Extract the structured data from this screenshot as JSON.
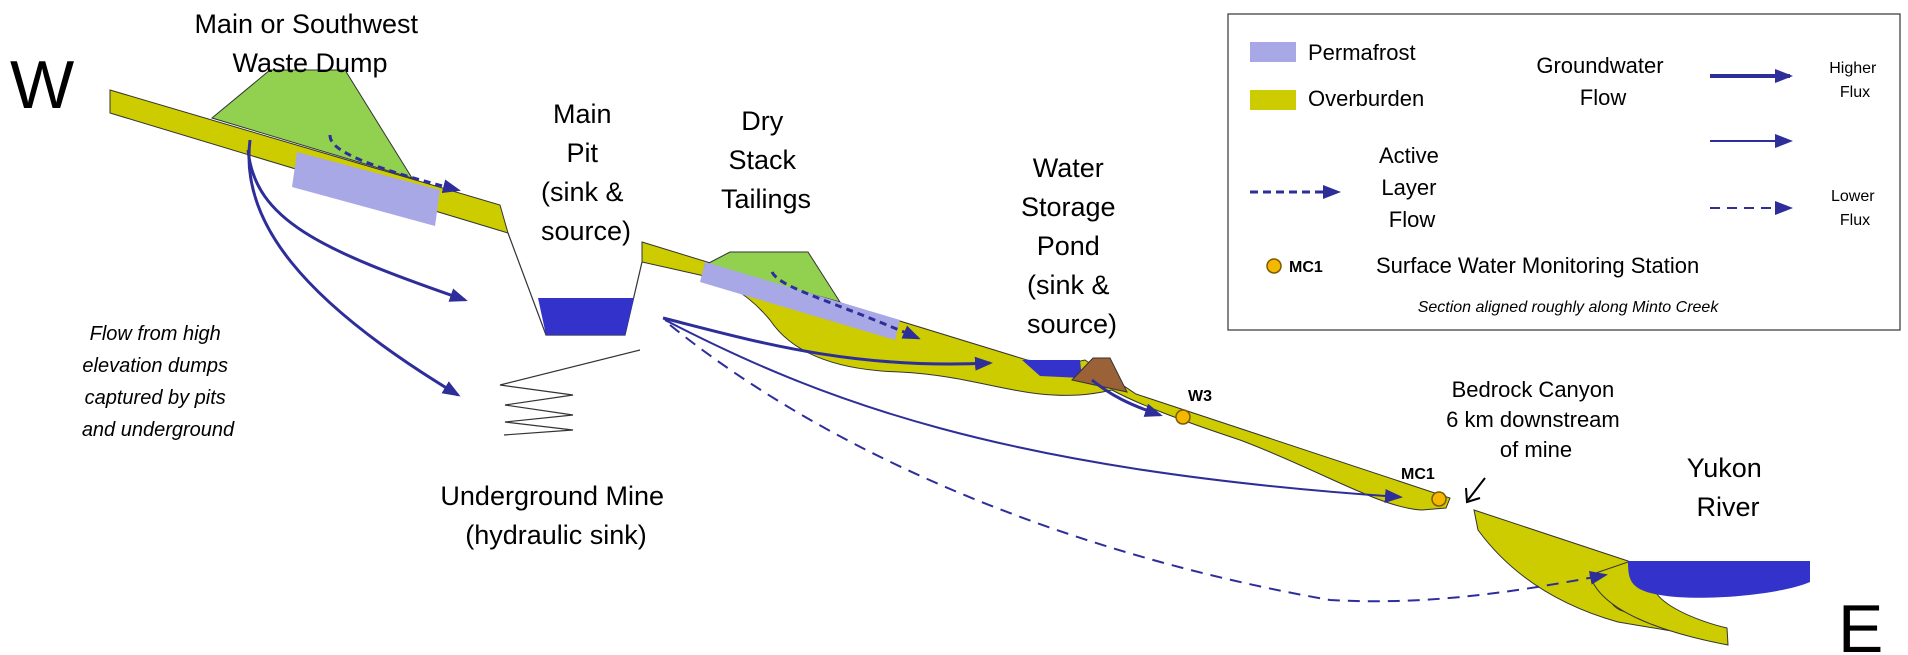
{
  "directions": {
    "west": "W",
    "east": "E"
  },
  "labels": {
    "dump": [
      "Main or Southwest",
      "Waste Dump"
    ],
    "main_pit": [
      "Main",
      "Pit",
      "(sink &",
      "source)"
    ],
    "dry_stack": [
      "Dry",
      "Stack",
      "Tailings"
    ],
    "water_pond": [
      "Water",
      "Storage",
      "Pond",
      "(sink &",
      "source)"
    ],
    "underground": [
      "Underground Mine",
      "(hydraulic sink)"
    ],
    "flow_note": [
      "Flow from high",
      "elevation dumps",
      "captured by pits",
      "and underground"
    ],
    "canyon": [
      "Bedrock Canyon",
      "6 km downstream",
      "of mine"
    ],
    "river": [
      "Yukon",
      "River"
    ],
    "station_w3": "W3",
    "station_mc1": "MC1"
  },
  "legend": {
    "permafrost": "Permafrost",
    "overburden": "Overburden",
    "groundwater": [
      "Groundwater",
      "Flow"
    ],
    "higher_flux": [
      "Higher",
      "Flux"
    ],
    "lower_flux": [
      "Lower",
      "Flux"
    ],
    "active_layer": [
      "Active",
      "Layer",
      "Flow"
    ],
    "station_code": "MC1",
    "station_desc": "Surface Water Monitoring Station",
    "note": "Section aligned roughly along Minto Creek"
  },
  "colors": {
    "permafrost": "#a8a8e6",
    "overburden": "#cccc00",
    "dump": "#92d050",
    "water": "#3333cc",
    "arrow": "#2e2e9a",
    "dam": "#9a6236",
    "station": "#f5b800"
  }
}
